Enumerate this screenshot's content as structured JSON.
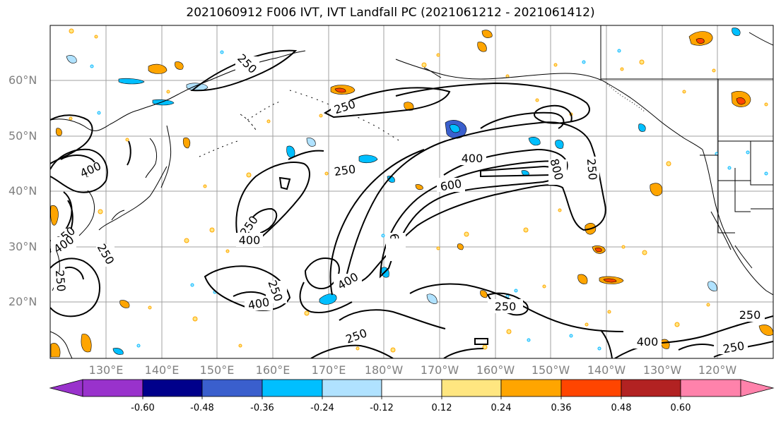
{
  "title": "2021060912 F006 IVT, IVT Landfall PC (2021061212 - 2021061412)",
  "lat_labels": [
    "60°N",
    "50°N",
    "40°N",
    "30°N",
    "20°N"
  ],
  "lon_labels": [
    "130°E",
    "140°E",
    "150°E",
    "160°E",
    "170°E",
    "180°W",
    "170°W",
    "160°W",
    "150°W",
    "140°W",
    "130°W",
    "120°W"
  ],
  "contour_labels": [
    "250",
    "250",
    "250",
    "400",
    "400",
    "600",
    "600",
    "800",
    "250",
    "250",
    "400",
    "250",
    "400",
    "250",
    "400",
    "600",
    "250",
    "250",
    "250",
    "400",
    "250",
    "400",
    "250"
  ],
  "colorbar": {
    "tick_labels": [
      "-0.60",
      "-0.48",
      "-0.36",
      "-0.24",
      "-0.12",
      "0.12",
      "0.24",
      "0.36",
      "0.48",
      "0.60"
    ],
    "colors": [
      "#9932cc",
      "#00008b",
      "#3a5fcd",
      "#00bfff",
      "#b0e2ff",
      "#ffffff",
      "#ffe680",
      "#ffa500",
      "#ff4500",
      "#b22222",
      "#ff82ab",
      "#ff82ab"
    ]
  },
  "colors": {
    "contour": "#000000",
    "grid": "#a0a0a0",
    "coast": "#000000"
  }
}
